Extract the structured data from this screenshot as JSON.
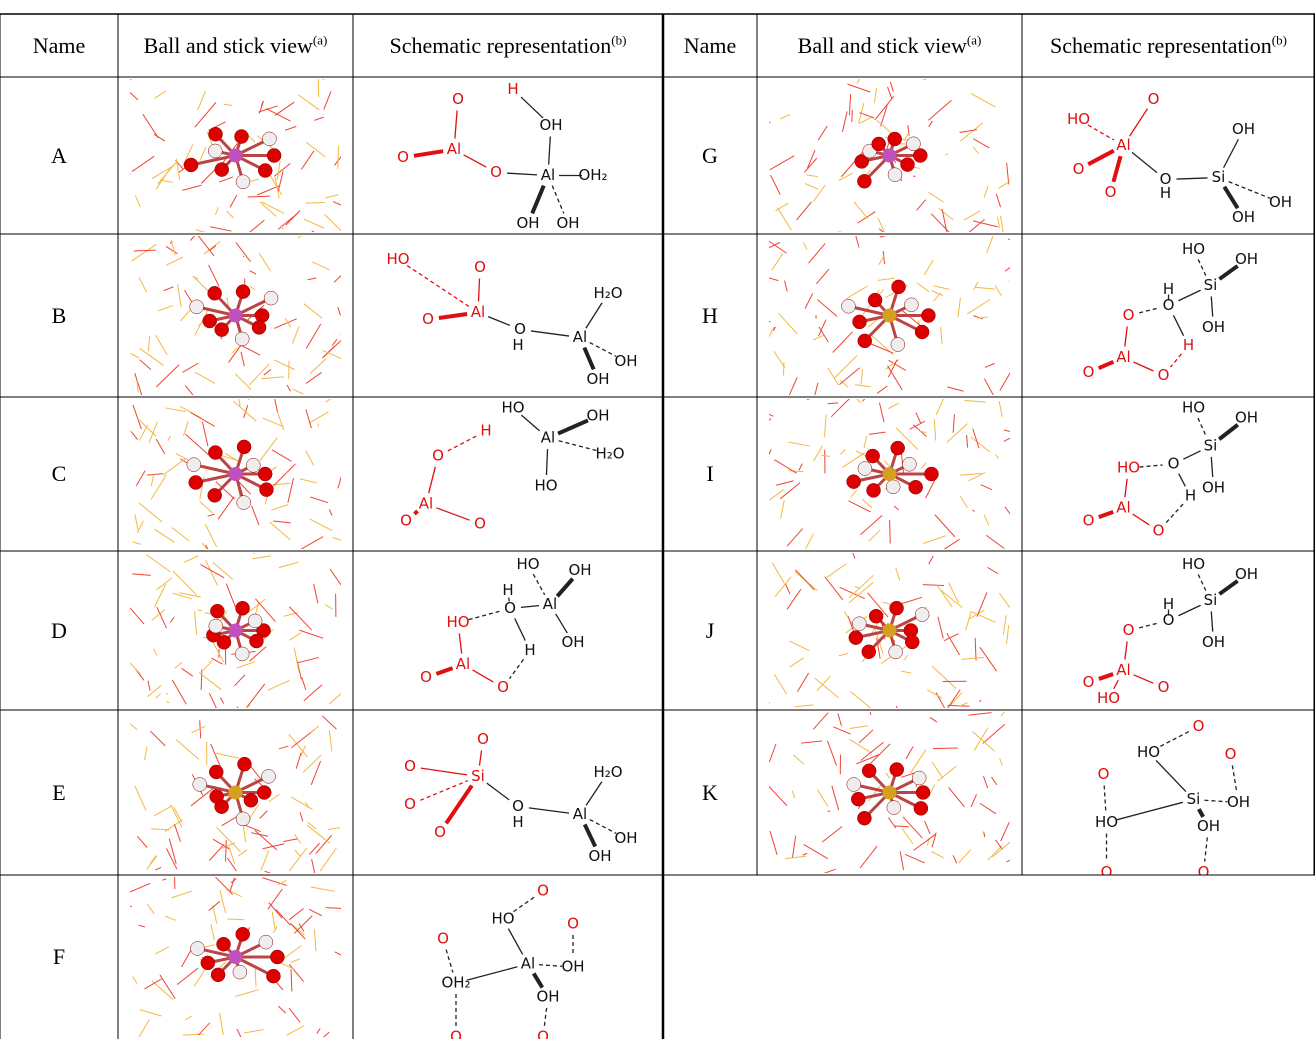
{
  "header": {
    "name": "Name",
    "ball": "Ball and stick view",
    "ball_note": "(a)",
    "schematic": "Schematic representation",
    "schematic_note": "(b)"
  },
  "rows": [
    {
      "name": "A",
      "schematic": [
        "O",
        "H",
        "OH",
        "O",
        "Al",
        "O",
        "Al",
        "OH₂",
        "OH",
        "OH"
      ]
    },
    {
      "name": "B",
      "schematic": [
        "HO",
        "O",
        "O",
        "Al",
        "O",
        "H",
        "Al",
        "H₂O",
        "OH",
        "OH"
      ]
    },
    {
      "name": "C",
      "schematic": [
        "HO",
        "H",
        "Al",
        "OH",
        "H₂O",
        "HO",
        "O",
        "O",
        "Al",
        "O"
      ]
    },
    {
      "name": "D",
      "schematic": [
        "HO",
        "OH",
        "H",
        "Al",
        "HO",
        "O",
        "OH",
        "H",
        "O",
        "Al",
        "O"
      ]
    },
    {
      "name": "E",
      "schematic": [
        "O",
        "O",
        "Si",
        "O",
        "O",
        "O",
        "H",
        "Al",
        "H₂O",
        "OH",
        "OH"
      ]
    },
    {
      "name": "F",
      "schematic": [
        "O",
        "HO",
        "O",
        "O",
        "Al",
        "OH",
        "OH₂",
        "OH",
        "O",
        "O"
      ]
    },
    {
      "name": "G",
      "schematic": [
        "HO",
        "O",
        "Al",
        "O",
        "O",
        "O",
        "H",
        "Si",
        "OH",
        "OH",
        "OH"
      ]
    },
    {
      "name": "H",
      "schematic": [
        "HO",
        "OH",
        "H",
        "O",
        "Si",
        "OH",
        "O",
        "H",
        "Al",
        "O",
        "O"
      ]
    },
    {
      "name": "I",
      "schematic": [
        "HO",
        "OH",
        "HO",
        "O",
        "Si",
        "OH",
        "H",
        "O",
        "Al",
        "O"
      ]
    },
    {
      "name": "J",
      "schematic": [
        "HO",
        "OH",
        "H",
        "O",
        "Si",
        "OH",
        "O",
        "O",
        "Al",
        "HO",
        "O"
      ]
    },
    {
      "name": "K",
      "schematic": [
        "O",
        "HO",
        "O",
        "O",
        "Si",
        "OH",
        "HO",
        "OH",
        "O",
        "O"
      ]
    }
  ]
}
